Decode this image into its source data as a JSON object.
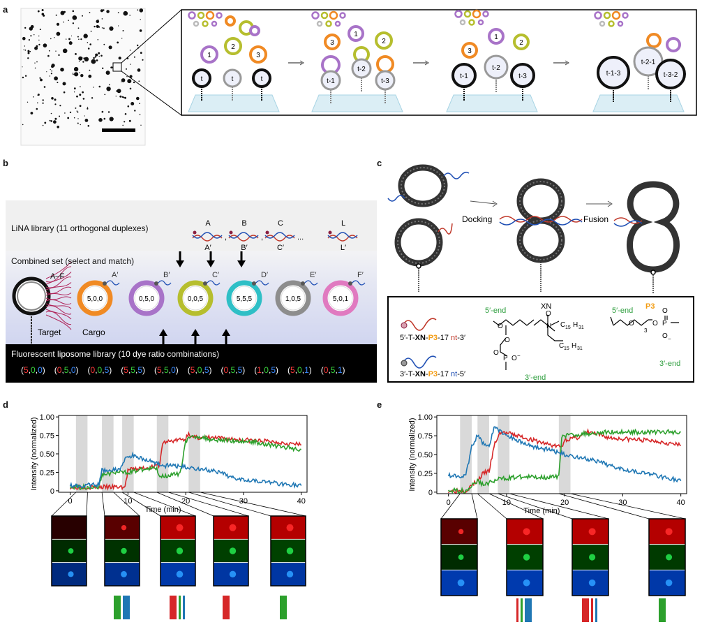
{
  "panels": {
    "a": "a",
    "b": "b",
    "c": "c",
    "d": "d",
    "e": "e"
  },
  "a": {
    "states": [
      {
        "vesicles": [
          "1",
          "2",
          "3"
        ],
        "targets": [
          "t",
          "t",
          "t"
        ]
      },
      {
        "vesicles": [
          "3",
          "1",
          "2"
        ],
        "targets": [
          "t-1",
          "t-2",
          "t-3"
        ]
      },
      {
        "vesicles": [
          "3",
          "1",
          "2"
        ],
        "targets": [
          "t-1",
          "t-2",
          "t-3"
        ]
      },
      {
        "targets": [
          "t-1-3",
          "t-2-1",
          "t-3-2"
        ]
      }
    ]
  },
  "b": {
    "lina_title": "LiNA library (11 orthogonal duplexes)",
    "duplexes": [
      {
        "top": "A",
        "bottom": "A′"
      },
      {
        "top": "B",
        "bottom": "B′"
      },
      {
        "top": "C",
        "bottom": "C′"
      },
      {
        "top": "L",
        "bottom": "L′"
      }
    ],
    "sep": ",",
    "ellipsis": "...",
    "combined_title": "Combined set (select and match)",
    "target_range": "A–F",
    "target_label": "Target",
    "cargo_label": "Cargo",
    "liposomes": [
      {
        "code": "5,0,0",
        "strand": "A′",
        "color": "#f08a24"
      },
      {
        "code": "0,5,0",
        "strand": "B′",
        "color": "#a873c8"
      },
      {
        "code": "0,0,5",
        "strand": "C′",
        "color": "#b6be2e"
      },
      {
        "code": "5,5,5",
        "strand": "D′",
        "color": "#2fbfc6"
      },
      {
        "code": "1,0,5",
        "strand": "E′",
        "color": "#8d8d8d"
      },
      {
        "code": "5,0,1",
        "strand": "F′",
        "color": "#e07ac0"
      }
    ],
    "fluor_title": "Fluorescent liposome library (10 dye ratio combinations)",
    "fluor_combos": [
      [
        "5",
        "0",
        "0"
      ],
      [
        "0",
        "5",
        "0"
      ],
      [
        "0",
        "0",
        "5"
      ],
      [
        "5",
        "5",
        "5"
      ],
      [
        "5",
        "5",
        "0"
      ],
      [
        "5",
        "0",
        "5"
      ],
      [
        "0",
        "5",
        "5"
      ],
      [
        "1",
        "0",
        "5"
      ],
      [
        "5",
        "0",
        "1"
      ],
      [
        "0",
        "5",
        "1"
      ]
    ],
    "combo_colors": [
      "#ff3b3b",
      "#39d43d",
      "#3b8bff"
    ]
  },
  "c": {
    "docking": "Docking",
    "fusion": "Fusion",
    "strand1": [
      "5′-T-",
      "XN",
      "-",
      "P3",
      "-17 ",
      "nt",
      "-3′"
    ],
    "strand2": [
      "3′-T-",
      "XN",
      "-",
      "P3",
      "-17 ",
      "nt",
      "-5′"
    ],
    "xn_title": "XN",
    "xn_5end": "5′-end",
    "xn_3end": "3′-end",
    "p3_title": "P3",
    "p3_5end": "5′-end",
    "p3_3end": "3′-end",
    "chem": {
      "O": "O",
      "N": "N",
      "P": "P",
      "c15": "C",
      "sub15": "15",
      "h31": "H",
      "sub31": "31",
      "minus": "−",
      "sub3": "3"
    }
  },
  "d": {
    "ylabel": "Intensity (normalized)",
    "xlabel": "Time (min)"
  },
  "e": {
    "ylabel": "Intensity (normalized)",
    "xlabel": "Time (min)"
  },
  "colors": {
    "red": "#d62728",
    "green": "#2ca02c",
    "blue": "#1f77b4"
  },
  "chart_data": [
    {
      "type": "line",
      "panel": "d",
      "xlabel": "Time (min)",
      "ylabel": "Intensity (normalized)",
      "xlim": [
        -2,
        41
      ],
      "ylim": [
        -0.02,
        1.02
      ],
      "xticks": [
        "0",
        "10",
        "20",
        "30",
        "40"
      ],
      "yticks": [
        "0",
        "0.25",
        "0.50",
        "0.75",
        "1.00"
      ],
      "shaded_windows": [
        [
          1,
          3
        ],
        [
          5.5,
          7.5
        ],
        [
          9,
          11
        ],
        [
          15,
          17
        ],
        [
          20.5,
          22.5
        ]
      ],
      "series": [
        {
          "color": "#d62728",
          "x": [
            0,
            5,
            8,
            9.5,
            10,
            12,
            14,
            15.5,
            16,
            18,
            20,
            20.5,
            21,
            24,
            28,
            32,
            36,
            40
          ],
          "y": [
            0.05,
            0.05,
            0.05,
            0.05,
            0.28,
            0.3,
            0.32,
            0.35,
            0.65,
            0.68,
            0.7,
            0.8,
            0.72,
            0.72,
            0.7,
            0.68,
            0.66,
            0.62
          ]
        },
        {
          "color": "#2ca02c",
          "x": [
            0,
            5,
            5.5,
            8,
            9,
            10,
            12,
            14,
            15,
            15.5,
            16,
            18,
            19,
            20,
            21,
            22,
            24,
            28,
            32,
            36,
            40
          ],
          "y": [
            0.05,
            0.05,
            0.22,
            0.25,
            0.25,
            0.25,
            0.28,
            0.3,
            0.3,
            0.2,
            0.2,
            0.22,
            0.22,
            0.68,
            0.72,
            0.74,
            0.7,
            0.68,
            0.66,
            0.6,
            0.56
          ]
        },
        {
          "color": "#1f77b4",
          "x": [
            0,
            5,
            5.5,
            8,
            9,
            9.5,
            11,
            13,
            15,
            16,
            18,
            20,
            22,
            24,
            26,
            28,
            32,
            36,
            40
          ],
          "y": [
            0.07,
            0.08,
            0.28,
            0.28,
            0.32,
            0.45,
            0.48,
            0.42,
            0.38,
            0.34,
            0.34,
            0.32,
            0.3,
            0.28,
            0.24,
            0.18,
            0.14,
            0.1,
            0.07
          ]
        }
      ],
      "thumbnails": [
        {
          "red": 0.0,
          "green": 0.45,
          "blue": 0.55
        },
        {
          "red": 0.35,
          "green": 0.6,
          "blue": 0.7
        },
        {
          "red": 1.0,
          "green": 0.85,
          "blue": 0.9
        },
        {
          "red": 1.0,
          "green": 0.85,
          "blue": 0.85
        },
        {
          "red": 1.0,
          "green": 0.9,
          "blue": 0.85
        }
      ],
      "barcodes": [
        [],
        [
          {
            "c": "#2ca02c",
            "w": 10
          },
          {
            "c": "#1f77b4",
            "w": 10
          }
        ],
        [
          {
            "c": "#d62728",
            "w": 10
          },
          {
            "c": "#2ca02c",
            "w": 3
          },
          {
            "c": "#1f77b4",
            "w": 3
          }
        ],
        [
          {
            "c": "#d62728",
            "w": 10
          }
        ],
        [
          {
            "c": "#2ca02c",
            "w": 10
          }
        ]
      ]
    },
    {
      "type": "line",
      "panel": "e",
      "xlabel": "Time (min)",
      "ylabel": "Intensity (normalized)",
      "xlim": [
        -2,
        41
      ],
      "ylim": [
        -0.02,
        1.02
      ],
      "xticks": [
        "0",
        "10",
        "20",
        "30",
        "40"
      ],
      "yticks": [
        "0",
        "0.25",
        "0.50",
        "0.75",
        "1.00"
      ],
      "shaded_windows": [
        [
          2,
          4
        ],
        [
          5,
          7
        ],
        [
          8.5,
          10.5
        ],
        [
          19,
          21
        ]
      ],
      "series": [
        {
          "color": "#d62728",
          "x": [
            0,
            3,
            5,
            6,
            7,
            8,
            9,
            12,
            15,
            18,
            19.5,
            20,
            22,
            24,
            28,
            32,
            36,
            40
          ],
          "y": [
            0.02,
            0.02,
            0.15,
            0.25,
            0.28,
            0.65,
            0.8,
            0.75,
            0.68,
            0.62,
            0.6,
            0.7,
            0.72,
            0.8,
            0.72,
            0.7,
            0.68,
            0.62
          ]
        },
        {
          "color": "#2ca02c",
          "x": [
            0,
            3,
            5,
            6,
            8,
            9,
            12,
            15,
            18,
            19,
            19.5,
            20,
            24,
            28,
            32,
            36,
            40
          ],
          "y": [
            0.02,
            0.02,
            0.15,
            0.1,
            0.15,
            0.18,
            0.2,
            0.2,
            0.2,
            0.2,
            0.75,
            0.75,
            0.78,
            0.8,
            0.8,
            0.8,
            0.8
          ]
        },
        {
          "color": "#1f77b4",
          "x": [
            0,
            3,
            4,
            5,
            6,
            7,
            8,
            9,
            11,
            14,
            18,
            20,
            24,
            28,
            32,
            36,
            40
          ],
          "y": [
            0.22,
            0.22,
            0.6,
            0.75,
            0.65,
            0.62,
            0.88,
            0.8,
            0.72,
            0.62,
            0.55,
            0.5,
            0.44,
            0.35,
            0.28,
            0.22,
            0.15
          ]
        }
      ],
      "thumbnails": [
        {
          "red": 0.35,
          "green": 0.45,
          "blue": 0.95
        },
        {
          "red": 1.0,
          "green": 0.85,
          "blue": 0.95
        },
        {
          "red": 1.0,
          "green": 0.8,
          "blue": 0.9
        },
        {
          "red": 1.0,
          "green": 0.75,
          "blue": 0.9
        }
      ],
      "barcodes": [
        [],
        [
          {
            "c": "#d62728",
            "w": 3
          },
          {
            "c": "#2ca02c",
            "w": 3
          },
          {
            "c": "#1f77b4",
            "w": 10
          }
        ],
        [
          {
            "c": "#d62728",
            "w": 10
          },
          {
            "c": "#d62728",
            "w": 3
          },
          {
            "c": "#1f77b4",
            "w": 3
          }
        ],
        [
          {
            "c": "#2ca02c",
            "w": 10
          }
        ]
      ]
    }
  ]
}
